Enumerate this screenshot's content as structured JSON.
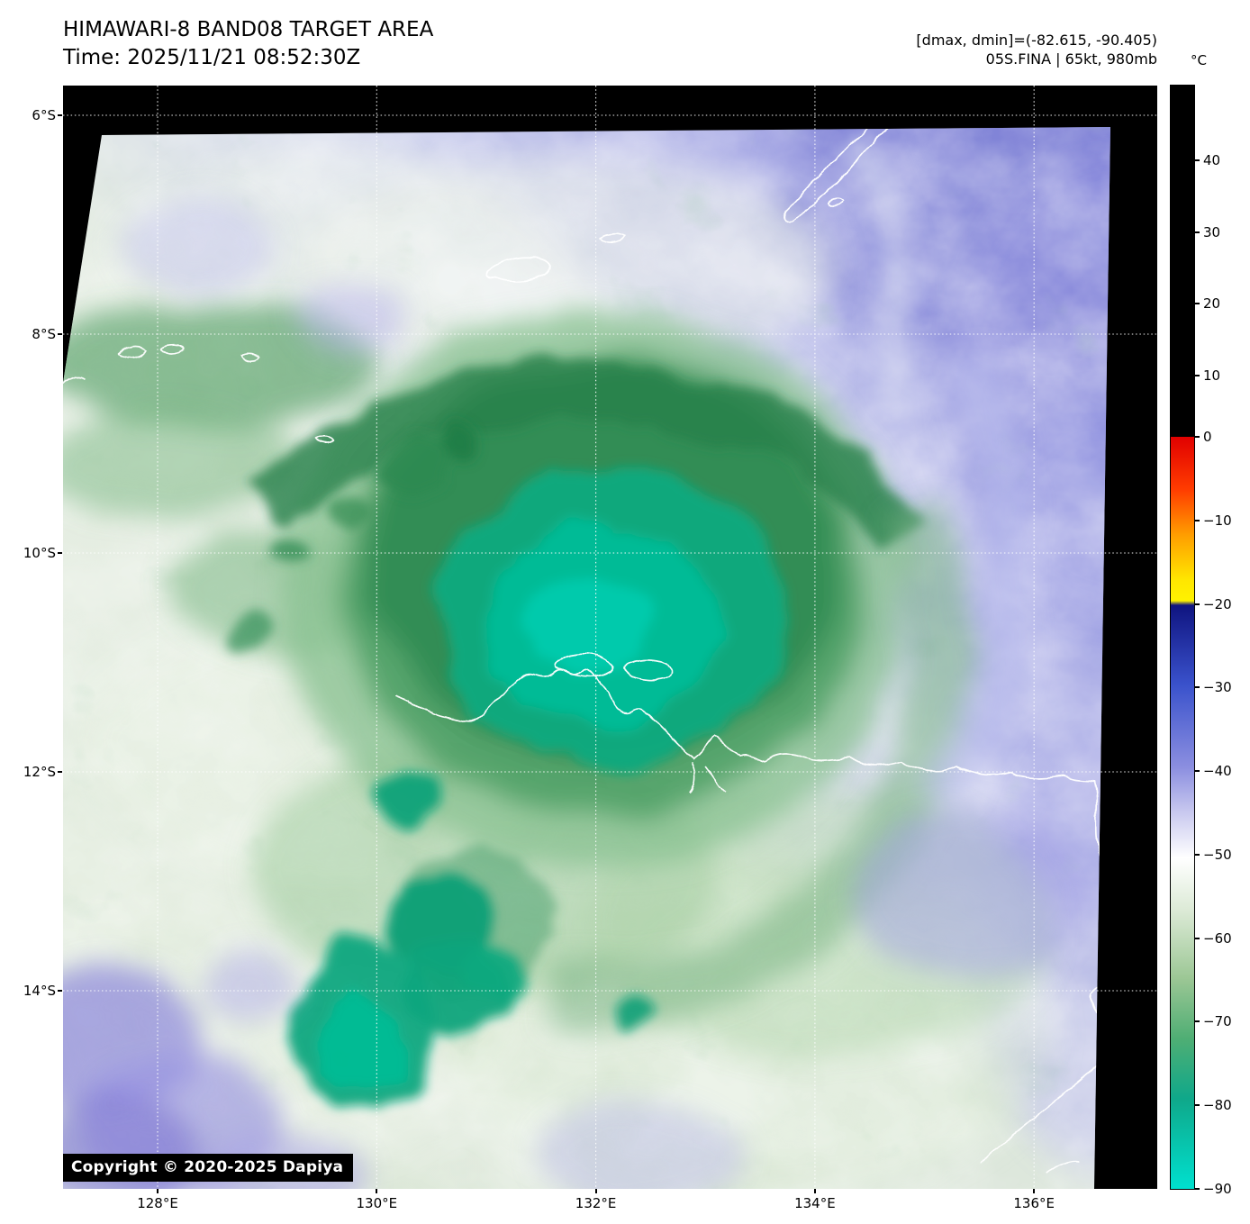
{
  "header": {
    "title": "HIMAWARI-8 BAND08 TARGET AREA",
    "time_line": "Time: 2025/11/21 08:52:30Z",
    "dminmax_line": "[dmax, dmin]=(-82.615, -90.405)",
    "storm_line": "05S.FINA | 65kt, 980mb"
  },
  "axes": {
    "lat_ticks": [
      "6°S",
      "8°S",
      "10°S",
      "12°S",
      "14°S"
    ],
    "lon_ticks": [
      "128°E",
      "130°E",
      "132°E",
      "134°E",
      "136°E"
    ]
  },
  "colorbar": {
    "unit_label": "°C",
    "upper_ticks": [
      "40",
      "30",
      "20",
      "10"
    ],
    "lower_ticks": [
      "0",
      "−10",
      "−20",
      "−30",
      "−40",
      "−50",
      "−60",
      "−70",
      "−80",
      "−90"
    ],
    "stops": [
      {
        "p": 0,
        "c": "#e10000"
      },
      {
        "p": 7,
        "c": "#ff3c00"
      },
      {
        "p": 13,
        "c": "#ff9d00"
      },
      {
        "p": 19,
        "c": "#ffe600"
      },
      {
        "p": 21.8,
        "c": "#fff200"
      },
      {
        "p": 22.4,
        "c": "#0f1480"
      },
      {
        "p": 33,
        "c": "#3a52cc"
      },
      {
        "p": 44,
        "c": "#8c8fe0"
      },
      {
        "p": 50,
        "c": "#c9c9ef"
      },
      {
        "p": 56,
        "c": "#ffffff"
      },
      {
        "p": 63,
        "c": "#dcead6"
      },
      {
        "p": 72,
        "c": "#9cc795"
      },
      {
        "p": 80,
        "c": "#4fae74"
      },
      {
        "p": 88,
        "c": "#0fa88a"
      },
      {
        "p": 100,
        "c": "#00e0cf"
      }
    ]
  },
  "footer": {
    "copyright": "Copyright © 2020-2025 Dapiya"
  },
  "palette": {
    "clear_warm_sky": "#8083d6",
    "cloud_field": "#dce8d6",
    "deep_convection_core": "#03bd98",
    "coastline": "#ffffff",
    "frame_background": "#000000"
  }
}
